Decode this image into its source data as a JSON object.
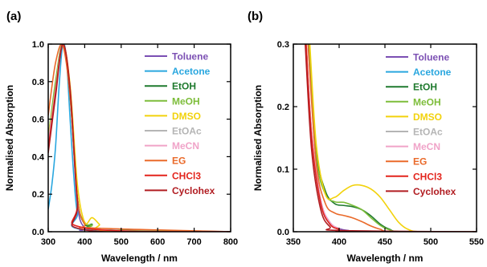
{
  "chart_data": [
    {
      "type": "line",
      "panel_label": "(a)",
      "xlabel": "Wavelength / nm",
      "ylabel": "Normalised Absorption",
      "xlim": [
        300,
        800
      ],
      "ylim": [
        0,
        1.0
      ],
      "xticks": [
        "300",
        "400",
        "500",
        "600",
        "700",
        "800"
      ],
      "yticks": [
        "0.0",
        "0.2",
        "0.4",
        "0.6",
        "0.8",
        "1.0"
      ],
      "legend_position": "upper right",
      "series": [
        {
          "name": "Toluene",
          "color": "#7b4fb3",
          "x": [
            300,
            320,
            340,
            360,
            380,
            400,
            420,
            800
          ],
          "y": [
            0.45,
            0.75,
            1.0,
            0.75,
            0.15,
            0.02,
            0.01,
            0.0
          ]
        },
        {
          "name": "Acetone",
          "color": "#2aa7df",
          "x": [
            300,
            310,
            320,
            330,
            340,
            350,
            360,
            370,
            380,
            400,
            800
          ],
          "y": [
            0.12,
            0.25,
            0.45,
            0.78,
            1.0,
            0.92,
            0.6,
            0.3,
            0.1,
            0.01,
            0.0
          ]
        },
        {
          "name": "EtOH",
          "color": "#1f7a2e",
          "x": [
            300,
            320,
            340,
            360,
            380,
            400,
            420,
            440,
            800
          ],
          "y": [
            0.5,
            0.78,
            1.0,
            0.72,
            0.18,
            0.04,
            0.04,
            0.01,
            0.0
          ]
        },
        {
          "name": "MeOH",
          "color": "#7dbd3a",
          "x": [
            300,
            320,
            340,
            360,
            380,
            400,
            420,
            440,
            800
          ],
          "y": [
            0.5,
            0.8,
            1.0,
            0.73,
            0.18,
            0.05,
            0.035,
            0.01,
            0.0
          ]
        },
        {
          "name": "DMSO",
          "color": "#f2d20c",
          "x": [
            300,
            320,
            340,
            360,
            380,
            400,
            420,
            440,
            460,
            800
          ],
          "y": [
            0.5,
            0.76,
            1.0,
            0.78,
            0.25,
            0.05,
            0.075,
            0.04,
            0.005,
            0.0
          ]
        },
        {
          "name": "EtOAc",
          "color": "#b5b5b5",
          "x": [
            300,
            320,
            340,
            360,
            380,
            400,
            800
          ],
          "y": [
            0.48,
            0.76,
            1.0,
            0.74,
            0.16,
            0.02,
            0.0
          ]
        },
        {
          "name": "MeCN",
          "color": "#f0a3c8",
          "x": [
            300,
            320,
            340,
            360,
            380,
            400,
            800
          ],
          "y": [
            0.46,
            0.75,
            1.0,
            0.74,
            0.16,
            0.02,
            0.0
          ]
        },
        {
          "name": "EG",
          "color": "#ea6a2a",
          "x": [
            300,
            320,
            340,
            360,
            380,
            400,
            420,
            800
          ],
          "y": [
            0.62,
            0.9,
            0.99,
            0.72,
            0.18,
            0.04,
            0.02,
            0.0
          ]
        },
        {
          "name": "CHCl3",
          "color": "#e3241c",
          "x": [
            300,
            320,
            340,
            360,
            380,
            400,
            800
          ],
          "y": [
            0.44,
            0.74,
            1.0,
            0.76,
            0.17,
            0.02,
            0.0
          ]
        },
        {
          "name": "Cyclohex",
          "color": "#b11d22",
          "x": [
            300,
            320,
            340,
            360,
            380,
            400,
            800
          ],
          "y": [
            0.42,
            0.72,
            1.0,
            0.76,
            0.16,
            0.01,
            0.0
          ]
        }
      ]
    },
    {
      "type": "line",
      "panel_label": "(b)",
      "xlabel": "Wavelength / nm",
      "ylabel": "Normalised Absorption",
      "xlim": [
        350,
        550
      ],
      "ylim": [
        0,
        0.3
      ],
      "xticks": [
        "350",
        "400",
        "450",
        "500",
        "550"
      ],
      "yticks": [
        "0.0",
        "0.1",
        "0.2",
        "0.3"
      ],
      "legend_position": "upper right",
      "series": [
        {
          "name": "Toluene",
          "color": "#7b4fb3",
          "x": [
            364,
            370,
            380,
            390,
            400,
            410,
            420,
            550
          ],
          "y": [
            0.3,
            0.16,
            0.05,
            0.015,
            0.005,
            0.002,
            0.0,
            0.0
          ]
        },
        {
          "name": "Acetone",
          "color": "#2aa7df",
          "x": [
            364,
            370,
            380,
            390,
            400,
            410,
            550
          ],
          "y": [
            0.3,
            0.15,
            0.045,
            0.012,
            0.004,
            0.0,
            0.0
          ]
        },
        {
          "name": "EtOH",
          "color": "#1f7a2e",
          "x": [
            367,
            375,
            385,
            395,
            405,
            415,
            425,
            435,
            445,
            455,
            470,
            550
          ],
          "y": [
            0.3,
            0.13,
            0.065,
            0.045,
            0.042,
            0.04,
            0.035,
            0.025,
            0.012,
            0.004,
            0.0,
            0.0
          ]
        },
        {
          "name": "MeOH",
          "color": "#7dbd3a",
          "x": [
            367,
            375,
            385,
            395,
            405,
            415,
            425,
            435,
            445,
            455,
            470,
            550
          ],
          "y": [
            0.3,
            0.12,
            0.06,
            0.048,
            0.047,
            0.042,
            0.035,
            0.022,
            0.01,
            0.003,
            0.0,
            0.0
          ]
        },
        {
          "name": "DMSO",
          "color": "#f2d20c",
          "x": [
            368,
            375,
            385,
            395,
            405,
            415,
            425,
            435,
            445,
            455,
            465,
            475,
            490,
            550
          ],
          "y": [
            0.3,
            0.14,
            0.06,
            0.055,
            0.066,
            0.074,
            0.074,
            0.068,
            0.055,
            0.035,
            0.015,
            0.004,
            0.0,
            0.0
          ]
        },
        {
          "name": "EtOAc",
          "color": "#b5b5b5",
          "x": [
            364,
            370,
            380,
            390,
            400,
            410,
            550
          ],
          "y": [
            0.3,
            0.15,
            0.048,
            0.014,
            0.004,
            0.0,
            0.0
          ]
        },
        {
          "name": "MeCN",
          "color": "#f0a3c8",
          "x": [
            364,
            370,
            380,
            390,
            400,
            410,
            550
          ],
          "y": [
            0.3,
            0.16,
            0.05,
            0.015,
            0.005,
            0.0,
            0.0
          ]
        },
        {
          "name": "EG",
          "color": "#ea6a2a",
          "x": [
            366,
            375,
            385,
            395,
            405,
            415,
            425,
            435,
            445,
            460,
            550
          ],
          "y": [
            0.3,
            0.11,
            0.045,
            0.03,
            0.026,
            0.022,
            0.016,
            0.009,
            0.004,
            0.0,
            0.0
          ]
        },
        {
          "name": "CHCl3",
          "color": "#e3241c",
          "x": [
            364,
            370,
            380,
            390,
            400,
            410,
            550
          ],
          "y": [
            0.3,
            0.15,
            0.045,
            0.012,
            0.004,
            0.0,
            0.0
          ]
        },
        {
          "name": "Cyclohex",
          "color": "#b11d22",
          "x": [
            363,
            370,
            380,
            390,
            400,
            550
          ],
          "y": [
            0.3,
            0.13,
            0.035,
            0.008,
            0.002,
            0.0
          ]
        }
      ]
    }
  ]
}
